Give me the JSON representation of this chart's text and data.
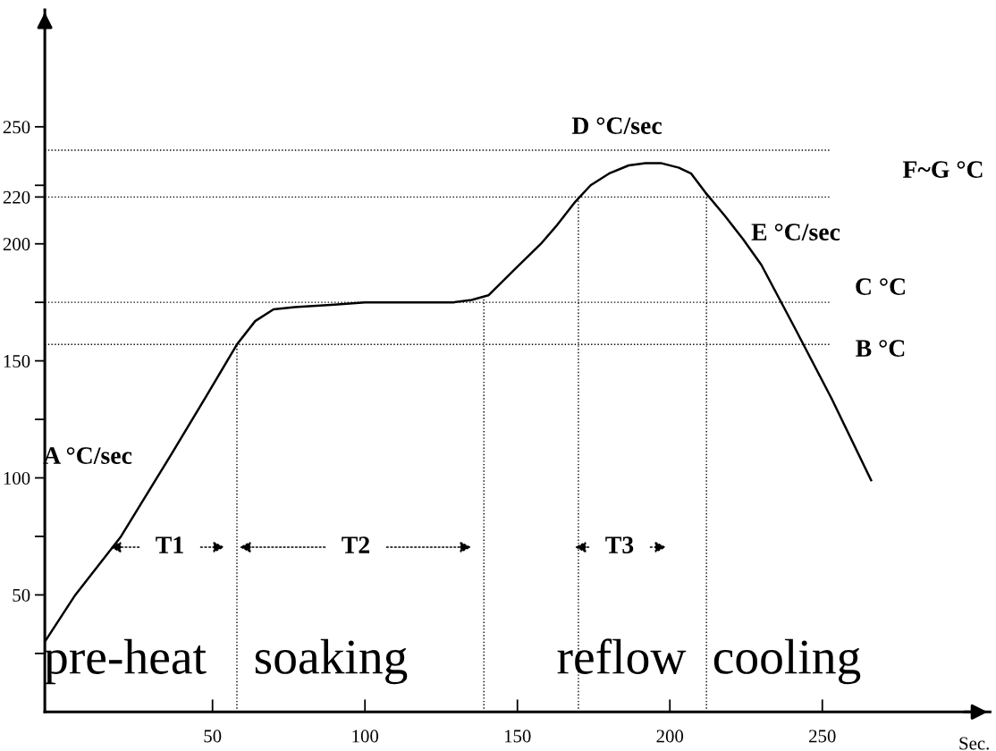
{
  "chart_data": {
    "type": "line",
    "xlabel": "Sec.",
    "x": [
      -5,
      5,
      20,
      36,
      48,
      58,
      64,
      70,
      77,
      90,
      100,
      115,
      129,
      135,
      140.5,
      149,
      157.7,
      163,
      169,
      174,
      180,
      186.5,
      192,
      197,
      203,
      207,
      211.6,
      218,
      224,
      230,
      241,
      253,
      266
    ],
    "series": [
      {
        "color": "#000000",
        "values": [
          30,
          50,
          75,
          109,
          135,
          157,
          167,
          172,
          173,
          174,
          175,
          175,
          175,
          176,
          178,
          189,
          200,
          208,
          218,
          225,
          230,
          233.5,
          234.5,
          234.5,
          232.5,
          230,
          222,
          212,
          202,
          191,
          164,
          134,
          99
        ]
      }
    ],
    "xlim": [
      -5,
      305
    ],
    "ylim": [
      0,
      300
    ],
    "xticks": [
      50,
      100,
      150,
      200,
      250
    ],
    "yticks": [
      {
        "value": 25,
        "label": null
      },
      50,
      {
        "value": 75,
        "label": null
      },
      100,
      {
        "value": 125,
        "label": null
      },
      150,
      {
        "value": 175,
        "label": null
      },
      200,
      220,
      {
        "value": 225,
        "label": null
      },
      250
    ],
    "grid": false,
    "legend": false,
    "marker": "none",
    "line_style": "solid",
    "ref_lines": [
      {
        "axis": "y",
        "value": 240,
        "line_style": "dotted"
      },
      {
        "axis": "y",
        "value": 220,
        "line_style": "dotted"
      },
      {
        "axis": "y",
        "value": 175,
        "line_style": "dotted"
      },
      {
        "axis": "y",
        "value": 157,
        "line_style": "dotted"
      },
      {
        "axis": "x",
        "value": 58,
        "line_style": "dotted"
      },
      {
        "axis": "x",
        "value": 139,
        "line_style": "dotted"
      },
      {
        "axis": "x",
        "value": 170,
        "line_style": "dotted"
      },
      {
        "axis": "x",
        "value": 212,
        "line_style": "dotted"
      }
    ],
    "annotations": [
      "A °C/sec",
      "D °C/sec",
      "F~G °C",
      "E °C/sec",
      "C °C",
      "B °C",
      "T1",
      "T2",
      "T3",
      "pre-heat",
      "soaking",
      "reflow",
      "cooling"
    ]
  }
}
